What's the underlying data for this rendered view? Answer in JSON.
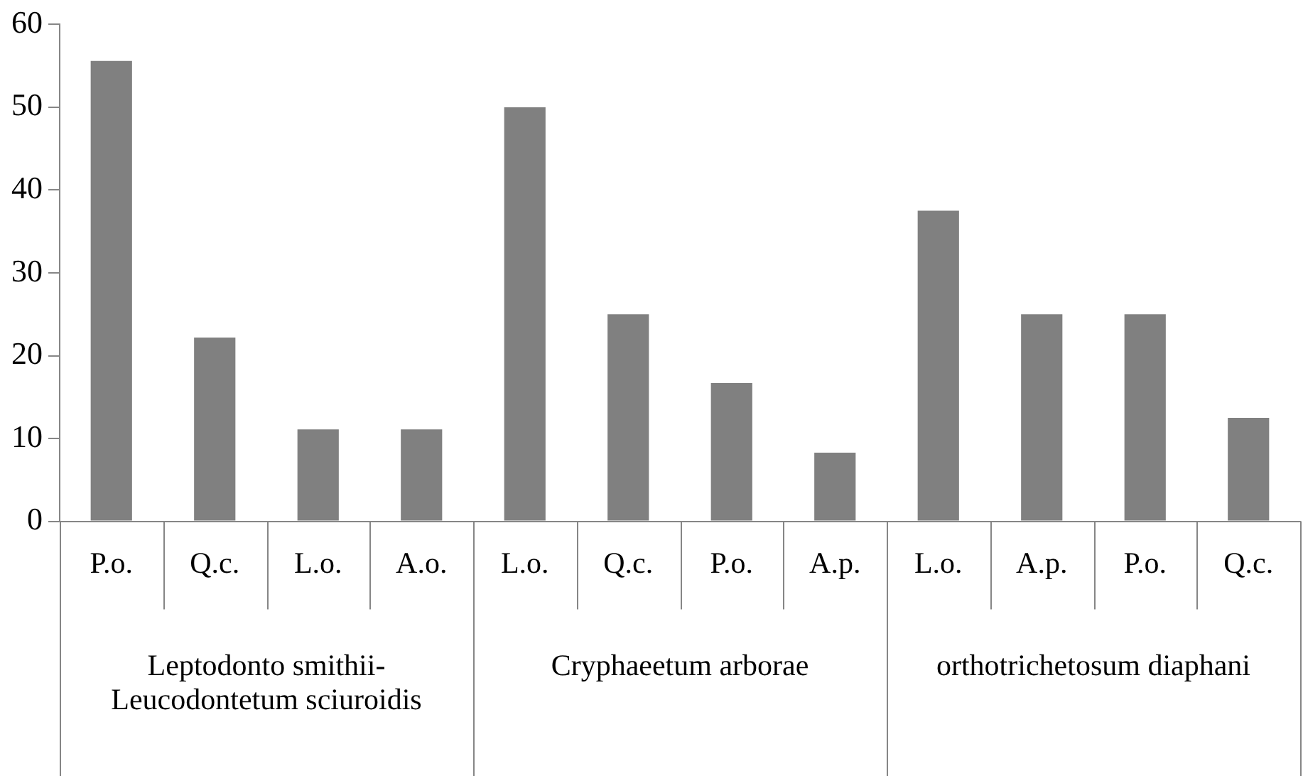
{
  "chart_data": {
    "type": "bar",
    "categories": [
      "P.o.",
      "Q.c.",
      "L.o.",
      "A.o.",
      "L.o.",
      "Q.c.",
      "P.o.",
      "A.p.",
      "L.o.",
      "A.p.",
      "P.o.",
      "Q.c."
    ],
    "values": [
      55.6,
      22.2,
      11.1,
      11.1,
      50,
      25,
      16.7,
      8.3,
      37.5,
      25,
      25,
      12.5
    ],
    "color": "#808080",
    "ylim": [
      0,
      60
    ],
    "yticks": [
      0,
      10,
      20,
      30,
      40,
      50,
      60
    ],
    "annotations": [
      "Leptodonto smithii-Leucodontetum sciuroidis",
      "Cryphaeetum arborae",
      "orthotrichetosum diaphani"
    ],
    "grid": false,
    "legend": false
  }
}
